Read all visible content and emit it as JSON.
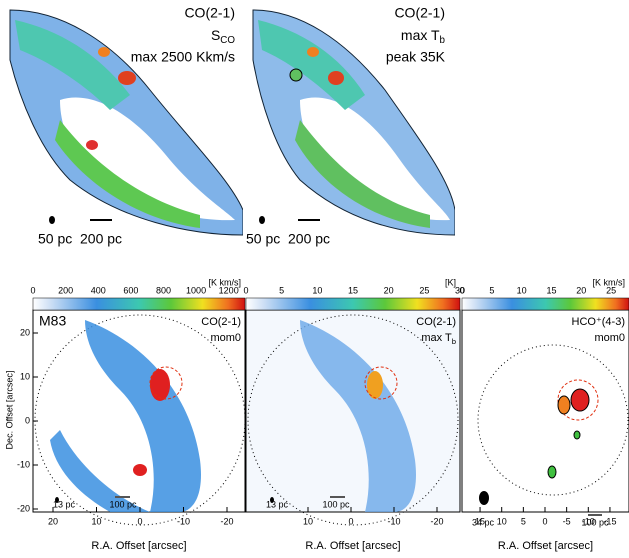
{
  "top_panels": [
    {
      "line1": "CO(2-1)",
      "line2": {
        "main": "S",
        "sub": "CO"
      },
      "line3": "max 2500 Kkm/s",
      "beam_label": "50 pc",
      "scale_label": "200 pc"
    },
    {
      "line1": "CO(2-1)",
      "line2": {
        "main": "max T",
        "sub": "b"
      },
      "line3": "peak 35K",
      "beam_label": "50 pc",
      "scale_label": "200 pc"
    }
  ],
  "bottom_panels": [
    {
      "colorbar": {
        "unit": "[K km/s]",
        "ticks": [
          0,
          200,
          400,
          600,
          800,
          1000,
          1200
        ]
      },
      "corner_label": "M83",
      "line1": "CO(2-1)",
      "line2": {
        "main": "mom0",
        "sub": ""
      },
      "xticks": [
        20,
        10,
        0,
        -10,
        -20
      ],
      "yticks": [
        20,
        10,
        0,
        -10,
        -20
      ],
      "ylabel": "Dec. Offset [arcsec]",
      "xlabel": "R.A. Offset [arcsec]",
      "beam_label": "13 pc",
      "scale_label": "100 pc"
    },
    {
      "colorbar": {
        "unit": "[K]",
        "ticks": [
          0,
          5,
          10,
          15,
          20,
          25,
          30
        ]
      },
      "line1": "CO(2-1)",
      "line2": {
        "main": "max T",
        "sub": "b"
      },
      "xticks": [
        10,
        0,
        -10,
        -20
      ],
      "xlabel": "R.A. Offset [arcsec]",
      "beam_label": "13 pc",
      "scale_label": "100 pc"
    },
    {
      "colorbar": {
        "unit": "[K km/s]",
        "ticks": [
          0,
          5,
          10,
          15,
          20,
          25
        ]
      },
      "line1": "HCO⁺(4-3)",
      "line2": {
        "main": "mom0",
        "sub": ""
      },
      "xticks": [
        15,
        10,
        5,
        0,
        -5,
        -10,
        -15
      ],
      "xlabel": "R.A. Offset [arcsec]",
      "beam_label": "34 pc",
      "scale_label": "100 pc"
    }
  ]
}
